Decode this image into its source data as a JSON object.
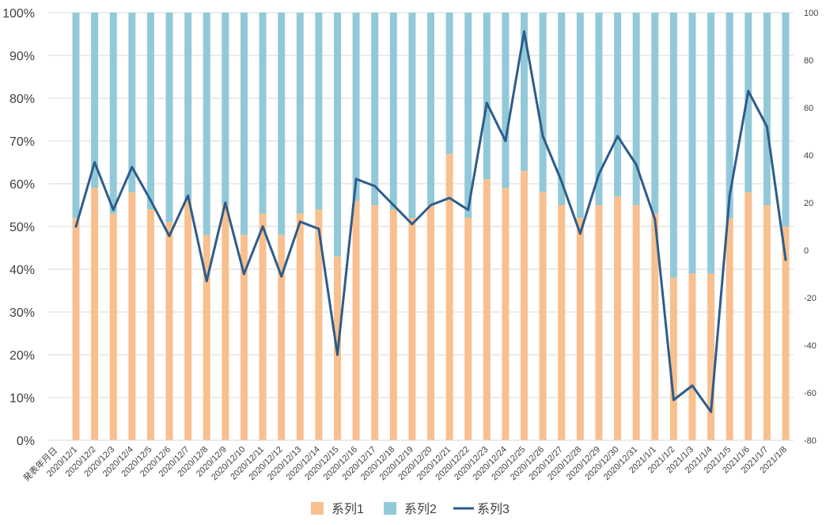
{
  "chart_data": {
    "type": "bar",
    "stacked_percent": true,
    "x_title": "発表年月日",
    "categories": [
      "2020/12/1",
      "2020/12/2",
      "2020/12/3",
      "2020/12/4",
      "2020/12/5",
      "2020/12/6",
      "2020/12/7",
      "2020/12/8",
      "2020/12/9",
      "2020/12/10",
      "2020/12/11",
      "2020/12/12",
      "2020/12/13",
      "2020/12/14",
      "2020/12/15",
      "2020/12/16",
      "2020/12/17",
      "2020/12/18",
      "2020/12/19",
      "2020/12/20",
      "2020/12/21",
      "2020/12/22",
      "2020/12/23",
      "2020/12/24",
      "2020/12/25",
      "2020/12/26",
      "2020/12/27",
      "2020/12/28",
      "2020/12/29",
      "2020/12/30",
      "2020/12/31",
      "2021/1/1",
      "2021/1/2",
      "2021/1/3",
      "2021/1/4",
      "2021/1/5",
      "2021/1/6",
      "2021/1/7",
      "2021/1/8"
    ],
    "series": [
      {
        "name": "系列1",
        "type": "bar",
        "axis": "left",
        "color": "#F8C08E",
        "values": [
          52,
          59,
          53,
          58,
          54,
          51,
          56,
          48,
          55,
          48,
          53,
          48,
          53,
          54,
          43,
          56,
          55,
          54,
          52,
          55,
          67,
          52,
          61,
          59,
          63,
          58,
          55,
          52,
          55,
          57,
          55,
          53,
          38,
          39,
          39,
          52,
          58,
          55,
          50
        ]
      },
      {
        "name": "系列2",
        "type": "bar",
        "axis": "left",
        "color": "#92C9D8",
        "values": [
          48,
          41,
          47,
          42,
          46,
          49,
          44,
          52,
          45,
          52,
          47,
          52,
          47,
          46,
          57,
          44,
          45,
          46,
          48,
          45,
          33,
          48,
          39,
          41,
          37,
          42,
          45,
          48,
          45,
          43,
          45,
          47,
          62,
          61,
          61,
          48,
          42,
          45,
          50
        ]
      },
      {
        "name": "系列3",
        "type": "line",
        "axis": "right",
        "color": "#2E5C8A",
        "values": [
          10,
          37,
          17,
          35,
          21,
          6,
          23,
          -13,
          20,
          -10,
          10,
          -11,
          12,
          9,
          -44,
          30,
          27,
          19,
          11,
          19,
          22,
          17,
          62,
          46,
          92,
          48,
          29,
          7,
          32,
          48,
          36,
          13,
          -63,
          -57,
          -68,
          23,
          67,
          52,
          -4
        ]
      }
    ],
    "y_left": {
      "min": 0,
      "max": 100,
      "step": 10,
      "format": "percent",
      "tick_labels": [
        "0%",
        "10%",
        "20%",
        "30%",
        "40%",
        "50%",
        "60%",
        "70%",
        "80%",
        "90%",
        "100%"
      ]
    },
    "y_right": {
      "min": -80,
      "max": 100,
      "step": 20,
      "tick_labels": [
        "-80",
        "-60",
        "-40",
        "-20",
        "0",
        "20",
        "40",
        "60",
        "80",
        "100"
      ]
    },
    "grid": true,
    "legend": "bottom"
  }
}
